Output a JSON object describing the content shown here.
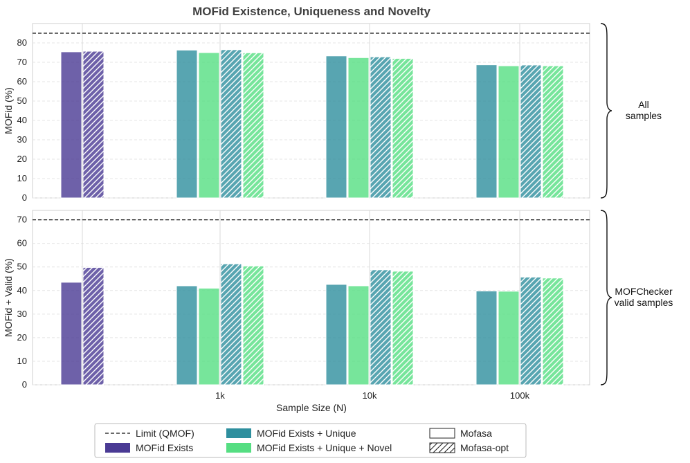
{
  "chart_data": {
    "type": "bar",
    "title": "MOFid Existence, Uniqueness and Novelty",
    "xlabel": "Sample Size (N)",
    "categories": [
      "",
      "1k",
      "10k",
      "100k"
    ],
    "colors": {
      "exists": "#4a3a94",
      "unique": "#2e8f9e",
      "novel": "#55de82",
      "limit": "#111111",
      "grid": "#e4e4e4",
      "frame": "#cfcfcf"
    },
    "panels": [
      {
        "ylabel": "MOFid (%)",
        "ylim": [
          0,
          90
        ],
        "yticks": [
          0,
          10,
          20,
          30,
          40,
          50,
          60,
          70,
          80
        ],
        "limit": 85,
        "brace_label": [
          "All",
          "samples"
        ],
        "series": [
          {
            "name": "MOFid Exists",
            "variant": "Mofasa",
            "color_key": "exists",
            "values": [
              75.4,
              null,
              null,
              null
            ]
          },
          {
            "name": "MOFid Exists",
            "variant": "Mofasa-opt",
            "color_key": "exists",
            "values": [
              75.7,
              null,
              null,
              null
            ]
          },
          {
            "name": "MOFid Exists + Unique",
            "variant": "Mofasa",
            "color_key": "unique",
            "values": [
              null,
              76.3,
              73.3,
              68.7
            ]
          },
          {
            "name": "MOFid Exists + Unique + Novel",
            "variant": "Mofasa",
            "color_key": "novel",
            "values": [
              null,
              75.0,
              72.4,
              68.2
            ]
          },
          {
            "name": "MOFid Exists + Unique",
            "variant": "Mofasa-opt",
            "color_key": "unique",
            "values": [
              null,
              76.5,
              72.8,
              68.6
            ]
          },
          {
            "name": "MOFid Exists + Unique + Novel",
            "variant": "Mofasa-opt",
            "color_key": "novel",
            "values": [
              null,
              74.9,
              72.0,
              68.2
            ]
          }
        ]
      },
      {
        "ylabel": "MOFid + Valid (%)",
        "ylim": [
          0,
          74
        ],
        "yticks": [
          0,
          10,
          20,
          30,
          40,
          50,
          60,
          70
        ],
        "limit": 70,
        "brace_label": [
          "MOFChecker",
          "valid samples"
        ],
        "series": [
          {
            "name": "MOFid Exists",
            "variant": "Mofasa",
            "color_key": "exists",
            "values": [
              43.5,
              null,
              null,
              null
            ]
          },
          {
            "name": "MOFid Exists",
            "variant": "Mofasa-opt",
            "color_key": "exists",
            "values": [
              49.8,
              null,
              null,
              null
            ]
          },
          {
            "name": "MOFid Exists + Unique",
            "variant": "Mofasa",
            "color_key": "unique",
            "values": [
              null,
              42.0,
              42.6,
              39.8
            ]
          },
          {
            "name": "MOFid Exists + Unique + Novel",
            "variant": "Mofasa",
            "color_key": "novel",
            "values": [
              null,
              41.0,
              42.0,
              39.7
            ]
          },
          {
            "name": "MOFid Exists + Unique",
            "variant": "Mofasa-opt",
            "color_key": "unique",
            "values": [
              null,
              51.3,
              48.8,
              45.7
            ]
          },
          {
            "name": "MOFid Exists + Unique + Novel",
            "variant": "Mofasa-opt",
            "color_key": "novel",
            "values": [
              null,
              50.4,
              48.2,
              45.3
            ]
          }
        ]
      }
    ],
    "legend": {
      "placement": "bottom-center",
      "items": [
        {
          "label": "Limit (QMOF)",
          "kind": "line"
        },
        {
          "label": "MOFid Exists + Unique",
          "kind": "fill",
          "color_key": "unique"
        },
        {
          "label": "Mofasa",
          "kind": "outline"
        },
        {
          "label": "MOFid Exists",
          "kind": "fill",
          "color_key": "exists"
        },
        {
          "label": "MOFid Exists + Unique + Novel",
          "kind": "fill",
          "color_key": "novel"
        },
        {
          "label": "Mofasa-opt",
          "kind": "hatch"
        }
      ]
    }
  }
}
